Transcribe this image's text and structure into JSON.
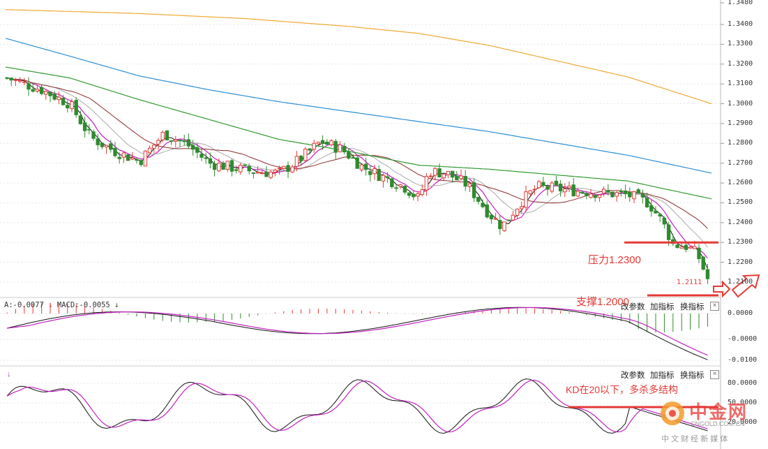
{
  "price_axis": {
    "ticks": [
      "1.3480",
      "1.3400",
      "1.3300",
      "1.3200",
      "1.3100",
      "1.3000",
      "1.2900",
      "1.2800",
      "1.2700",
      "1.2600",
      "1.2500",
      "1.2400",
      "1.2300",
      "1.2200",
      "1.2100"
    ]
  },
  "macd_axis": {
    "ticks": [
      "0.0000",
      "-0.0000",
      "-0.0100"
    ]
  },
  "kd_axis": {
    "ticks": [
      "80.0000",
      "50.0000",
      "20.0000"
    ]
  },
  "macd_header": {
    "prefix": "A:-0.0077",
    "macd": "MACD:-0.0055"
  },
  "last_price": "1.2111",
  "toolbar": {
    "params": "改参数",
    "add": "加指标",
    "switch": "换指标",
    "close": "×"
  },
  "annotations": {
    "resistance": "压力1.2300",
    "support": "支撑1.2000",
    "kd_note": "KD在20以下，多杀多结构"
  },
  "logo": {
    "name": "中金网",
    "domain": "CNGOLD.COM.CN",
    "slogan": "中 文 财 经 新 媒 体"
  },
  "colors": {
    "up": "#e53935",
    "down": "#2e8b2e",
    "ma_orange": "#f0a830",
    "ma_blue": "#2a8fd6",
    "ma_green": "#2f9a2f",
    "ma_darkred": "#8b2a2a",
    "ma_magenta": "#c020c0",
    "annotation": "#e53935"
  },
  "chart_data": {
    "type": "candlestick",
    "panels": [
      "price",
      "macd",
      "kd"
    ],
    "price_ylim": [
      1.21,
      1.348
    ],
    "support": 1.2,
    "resistance": 1.23,
    "macd_ylim": [
      -0.013,
      0.004
    ],
    "kd_ylim": [
      0,
      100
    ],
    "kd_reference": 50
  }
}
